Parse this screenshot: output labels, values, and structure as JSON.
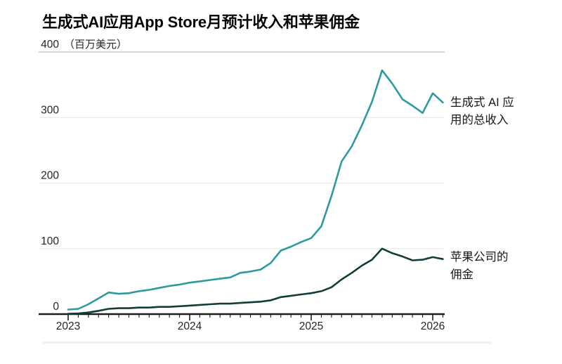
{
  "header": {
    "title": "生成式AI应用App Store月预计收入和苹果佣金"
  },
  "chart_data": {
    "type": "line",
    "title": "生成式AI应用App Store月预计收入和苹果佣金",
    "unit_label": "（百万美元）",
    "ylim": [
      0,
      400
    ],
    "y_ticks": [
      0,
      100,
      200,
      300,
      400
    ],
    "x_tick_labels": [
      "2023",
      "2024",
      "2025",
      "2026"
    ],
    "grid": "horizontal-only",
    "legend_position": "right-edge-annotations",
    "categories": [
      "2023-01",
      "2023-02",
      "2023-03",
      "2023-04",
      "2023-05",
      "2023-06",
      "2023-07",
      "2023-08",
      "2023-09",
      "2023-10",
      "2023-11",
      "2023-12",
      "2024-01",
      "2024-02",
      "2024-03",
      "2024-04",
      "2024-05",
      "2024-06",
      "2024-07",
      "2024-08",
      "2024-09",
      "2024-10",
      "2024-11",
      "2024-12",
      "2025-01",
      "2025-02",
      "2025-03",
      "2025-04",
      "2025-05",
      "2025-06",
      "2025-07",
      "2025-08",
      "2025-09",
      "2025-10",
      "2025-11",
      "2025-12",
      "2026-01",
      "2026-02"
    ],
    "series": [
      {
        "name": "生成式 AI 应用的总收入",
        "label_lines": [
          "生成式 AI 应",
          "用的总收入"
        ],
        "color": "#2d9b9d",
        "values": [
          7,
          8,
          15,
          24,
          33,
          31,
          32,
          35,
          37,
          40,
          43,
          45,
          48,
          50,
          52,
          54,
          56,
          63,
          65,
          68,
          78,
          97,
          103,
          110,
          116,
          134,
          180,
          233,
          256,
          288,
          324,
          372,
          352,
          328,
          318,
          307,
          337,
          323
        ]
      },
      {
        "name": "苹果公司的佣金",
        "label_lines": [
          "苹果公司的",
          "佣金"
        ],
        "color": "#123c39",
        "values": [
          0.5,
          1,
          2.5,
          5,
          8,
          9,
          9,
          10,
          10,
          11,
          11,
          12,
          13,
          14,
          15,
          16,
          16,
          17,
          18,
          19,
          21,
          26,
          28,
          30,
          32,
          35,
          41,
          53,
          63,
          74,
          83,
          100,
          93,
          88,
          82,
          83,
          87,
          84
        ]
      }
    ],
    "colors": {
      "revenue_line": "#2d9b9d",
      "commission_line": "#123c39",
      "axis": "#1c1c1c",
      "tick_label": "#262626",
      "gridline_top": "#c7c7c7",
      "gridline": "#eaeaea",
      "title_text": "#050505"
    }
  }
}
